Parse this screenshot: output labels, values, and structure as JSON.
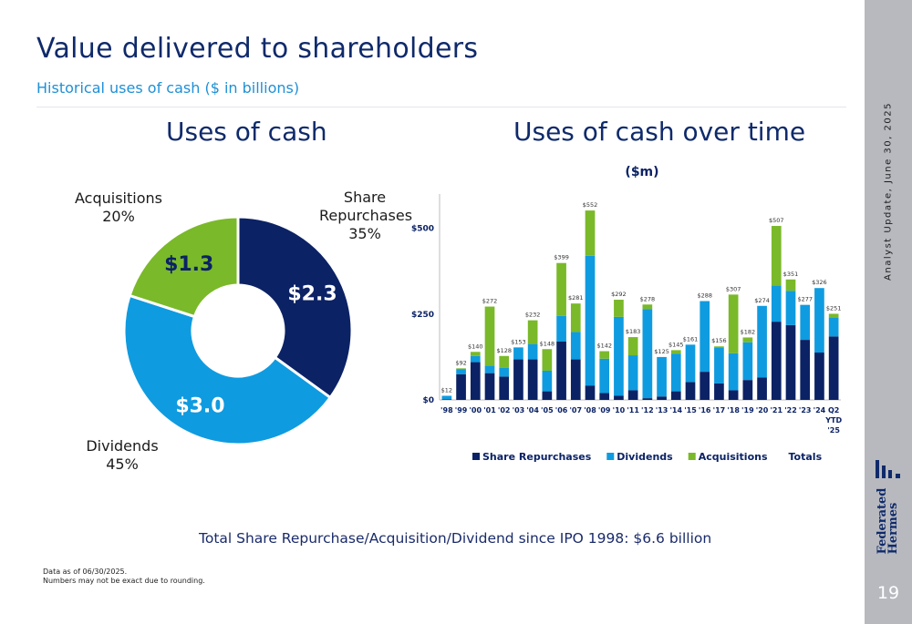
{
  "page": {
    "title": "Value delivered to shareholders",
    "subtitle": "Historical uses of cash ($ in billions)",
    "total_note": "Total Share Repurchase/Acquisition/Dividend since IPO 1998: $6.6 billion",
    "footnote_1": "Data as of 06/30/2025.",
    "footnote_2": "Numbers may not be exact due to rounding.",
    "side_text": "Analyst Update, June 30, 2025",
    "logo_line_1": "Federated",
    "logo_line_2": "Hermes",
    "page_number": "19"
  },
  "colors": {
    "share_repurchases": "#0b2265",
    "dividends": "#0f9be0",
    "acquisitions": "#7ab929",
    "title": "#0f2a6b",
    "subtitle": "#1e90d6",
    "side_band": "#b7b9bf"
  },
  "chart_data": [
    {
      "type": "pie",
      "title": "Uses of cash",
      "slices": [
        {
          "label": "Share Repurchases",
          "label_line_1": "Share",
          "label_line_2": "Repurchases",
          "percent": 35,
          "percent_label": "35%",
          "value": 2.3,
          "value_label": "$2.3",
          "color": "#0b2265"
        },
        {
          "label": "Dividends",
          "percent": 45,
          "percent_label": "45%",
          "value": 3.0,
          "value_label": "$3.0",
          "color": "#0f9be0"
        },
        {
          "label": "Acquisitions",
          "percent": 20,
          "percent_label": "20%",
          "value": 1.3,
          "value_label": "$1.3",
          "color": "#7ab929"
        }
      ]
    },
    {
      "type": "bar",
      "stacked": true,
      "title": "Uses of cash over time",
      "subtitle": "($m)",
      "categories": [
        "'98",
        "'99",
        "'00",
        "'01",
        "'02",
        "'03",
        "'04",
        "'05",
        "'06",
        "'07",
        "'08",
        "'09",
        "'10",
        "'11",
        "'12",
        "'13",
        "'14",
        "'15",
        "'16",
        "'17",
        "'18",
        "'19",
        "'20",
        "'21",
        "'22",
        "'23",
        "'24",
        "Q2 YTD '25"
      ],
      "series": [
        {
          "name": "Share Repurchases",
          "color": "#0b2265",
          "values": [
            2,
            75,
            110,
            78,
            68,
            118,
            118,
            25,
            170,
            118,
            42,
            20,
            12,
            28,
            5,
            10,
            25,
            52,
            82,
            48,
            28,
            58,
            65,
            228,
            218,
            175,
            138,
            185
          ]
        },
        {
          "name": "Dividends",
          "color": "#0f9be0",
          "values": [
            10,
            15,
            18,
            22,
            25,
            35,
            45,
            60,
            75,
            80,
            378,
            100,
            230,
            102,
            260,
            115,
            110,
            109,
            206,
            105,
            108,
            110,
            209,
            105,
            100,
            102,
            188,
            55
          ]
        },
        {
          "name": "Acquisitions",
          "color": "#7ab929",
          "values": [
            0,
            2,
            12,
            172,
            35,
            0,
            69,
            63,
            154,
            83,
            132,
            22,
            50,
            53,
            13,
            0,
            10,
            0,
            0,
            3,
            171,
            14,
            0,
            174,
            33,
            0,
            0,
            11
          ]
        }
      ],
      "totals_label": "Totals",
      "totals": [
        "$12",
        "$92",
        "$140",
        "$272",
        "$128",
        "$153",
        "$232",
        "$148",
        "$399",
        "$281",
        "$552",
        "$142",
        "$292",
        "$183",
        "$278",
        "$125",
        "$145",
        "$161",
        "$288",
        "$156",
        "$307",
        "$182",
        "$274",
        "$507",
        "$351",
        "$277",
        "$326",
        "$251"
      ],
      "total_values": [
        12,
        92,
        140,
        272,
        128,
        153,
        232,
        148,
        399,
        281,
        552,
        142,
        292,
        183,
        278,
        125,
        145,
        161,
        288,
        156,
        307,
        182,
        274,
        507,
        351,
        277,
        326,
        251
      ],
      "ylim": [
        0,
        600
      ],
      "y_ticks": [
        0,
        250,
        500
      ],
      "y_tick_labels": [
        "$0",
        "$250",
        "$500"
      ],
      "legend": "bottom"
    }
  ]
}
